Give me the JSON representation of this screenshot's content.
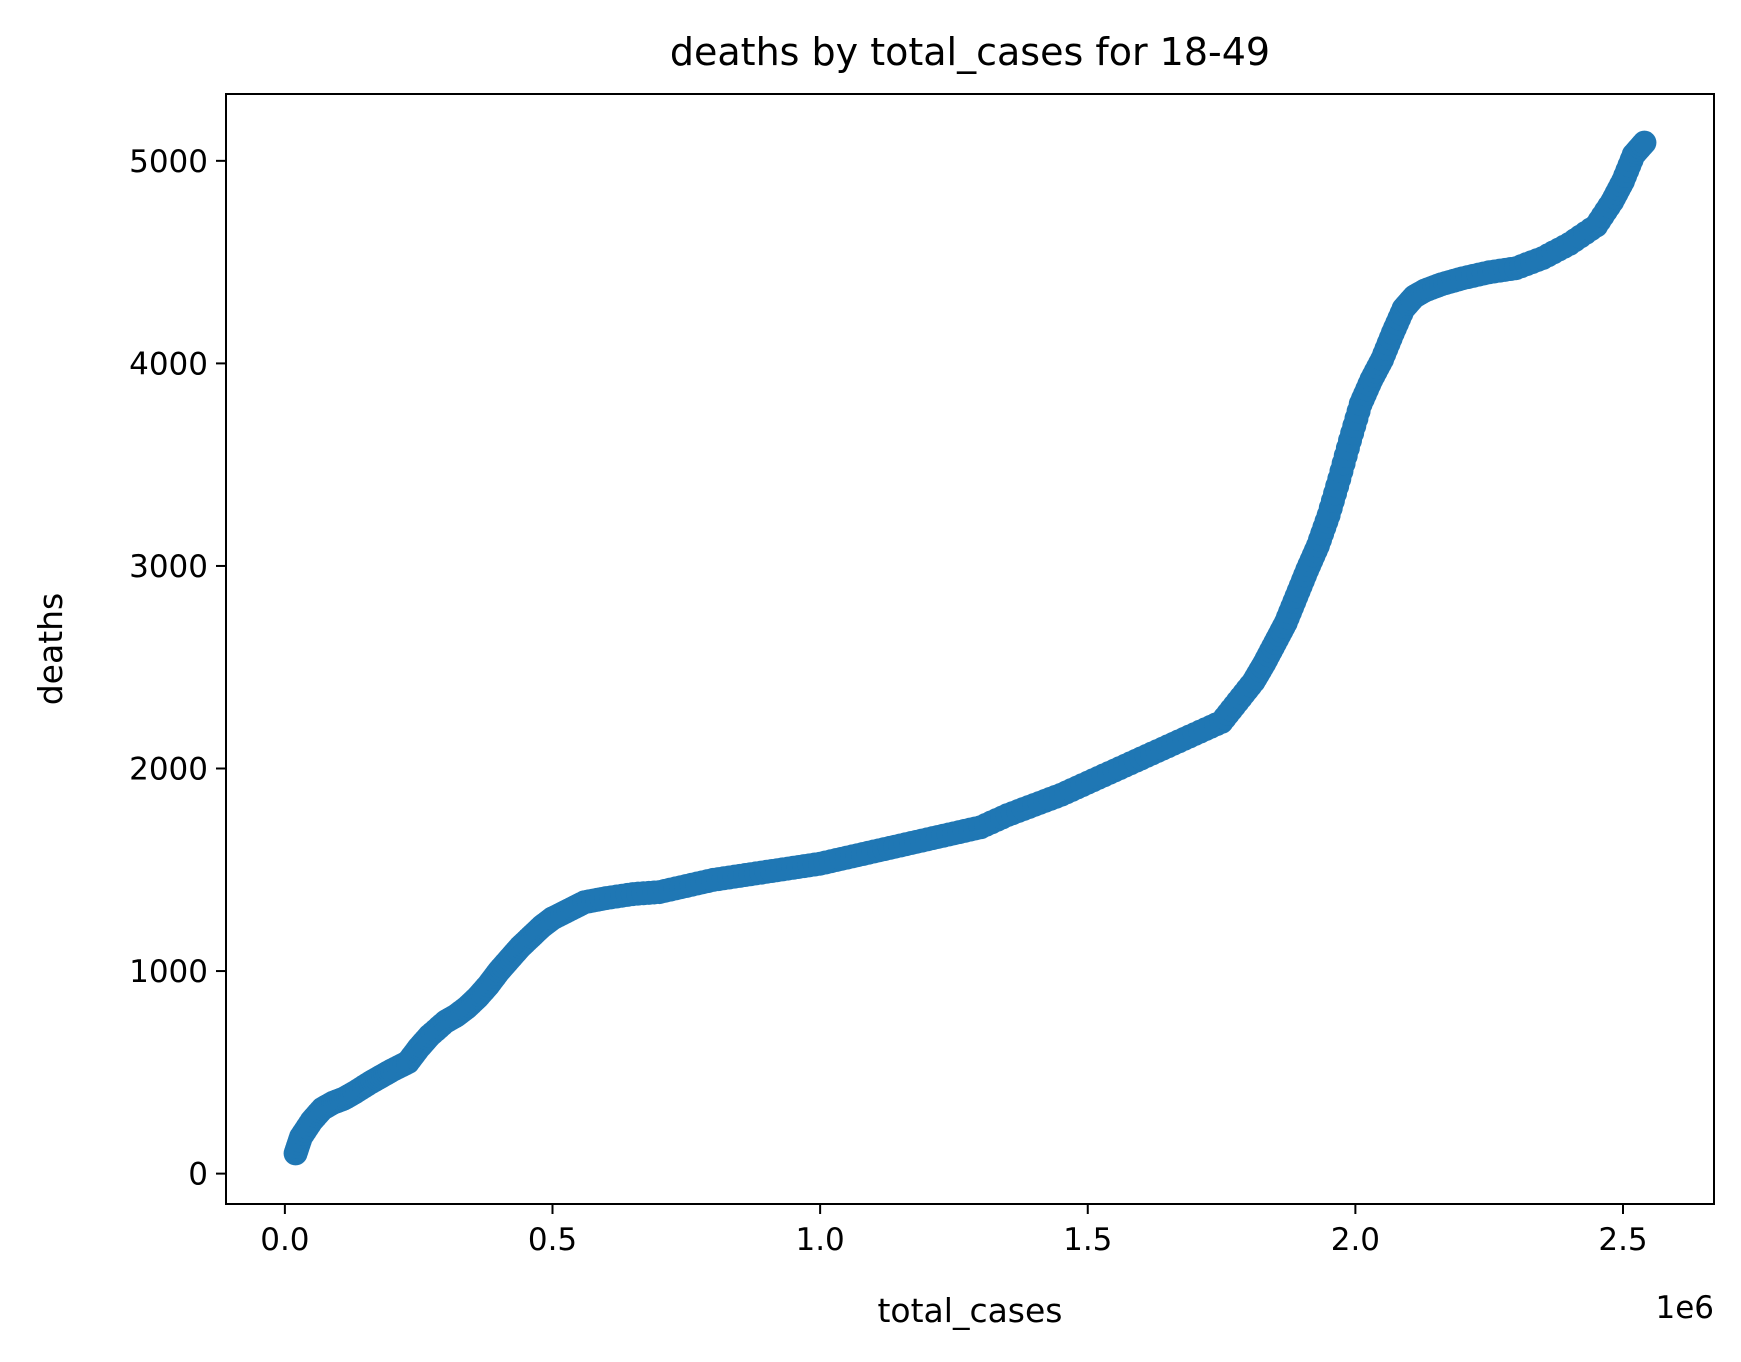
{
  "chart_data": {
    "type": "scatter",
    "title": "deaths by total_cases for 18-49",
    "xlabel": "total_cases",
    "ylabel": "deaths",
    "x_offset_label": "1e6",
    "x_scale": 1000000,
    "xlim": [
      -110000,
      2670000
    ],
    "ylim": [
      -150,
      5330
    ],
    "x_ticks": [
      0,
      500000,
      1000000,
      1500000,
      2000000,
      2500000
    ],
    "x_tick_labels": [
      "0.0",
      "0.5",
      "1.0",
      "1.5",
      "2.0",
      "2.5"
    ],
    "y_ticks": [
      0,
      1000,
      2000,
      3000,
      4000,
      5000
    ],
    "y_tick_labels": [
      "0",
      "1000",
      "2000",
      "3000",
      "4000",
      "5000"
    ],
    "grid": false,
    "marker_color": "#1f77b4",
    "series": [
      {
        "x": [
          20000,
          30000,
          50000,
          70000,
          90000,
          110000,
          130000,
          160000,
          180000,
          200000,
          230000,
          250000,
          270000,
          300000,
          320000,
          340000,
          360000,
          380000,
          400000,
          420000,
          440000,
          460000,
          480000,
          500000,
          530000,
          560000,
          600000,
          650000,
          700000,
          750000,
          800000,
          850000,
          900000,
          950000,
          1000000,
          1050000,
          1100000,
          1150000,
          1200000,
          1250000,
          1300000,
          1350000,
          1400000,
          1450000,
          1500000,
          1550000,
          1600000,
          1650000,
          1700000,
          1750000,
          1780000,
          1810000,
          1830000,
          1850000,
          1870000,
          1890000,
          1910000,
          1930000,
          1950000,
          1970000,
          1990000,
          2010000,
          2030000,
          2050000,
          2070000,
          2090000,
          2110000,
          2130000,
          2160000,
          2200000,
          2250000,
          2300000,
          2350000,
          2400000,
          2450000,
          2480000,
          2500000,
          2520000,
          2540000
        ],
        "y": [
          100,
          180,
          260,
          320,
          350,
          370,
          400,
          450,
          480,
          510,
          550,
          620,
          680,
          750,
          780,
          820,
          870,
          930,
          1000,
          1060,
          1120,
          1170,
          1220,
          1260,
          1300,
          1340,
          1360,
          1380,
          1390,
          1420,
          1450,
          1470,
          1490,
          1510,
          1530,
          1560,
          1590,
          1620,
          1650,
          1680,
          1710,
          1770,
          1820,
          1870,
          1930,
          1990,
          2050,
          2110,
          2170,
          2230,
          2330,
          2430,
          2520,
          2620,
          2720,
          2850,
          2980,
          3100,
          3250,
          3430,
          3620,
          3800,
          3920,
          4020,
          4150,
          4270,
          4330,
          4360,
          4390,
          4420,
          4450,
          4470,
          4520,
          4590,
          4680,
          4800,
          4900,
          5030,
          5090
        ]
      }
    ]
  }
}
